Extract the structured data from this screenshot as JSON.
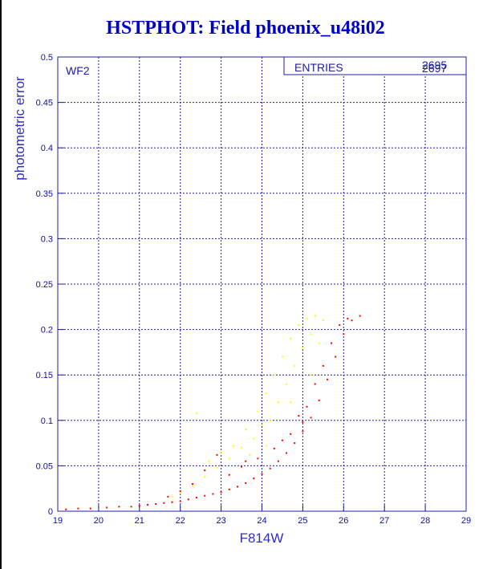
{
  "chart_data": {
    "type": "scatter",
    "title": "HSTPHOT: Field phoenix_u48i02",
    "xlabel": "F814W",
    "ylabel": "photometric error",
    "xlim": [
      19,
      29
    ],
    "ylim": [
      0,
      0.5
    ],
    "x_ticks": [
      "19",
      "20",
      "21",
      "22",
      "23",
      "24",
      "25",
      "26",
      "27",
      "28",
      "29"
    ],
    "y_ticks": [
      "0",
      "0.05",
      "0.1",
      "0.15",
      "0.2",
      "0.25",
      "0.3",
      "0.35",
      "0.4",
      "0.45",
      "0.5"
    ],
    "grid": true,
    "panel_label": "WF2",
    "stats_box": {
      "label": "ENTRIES",
      "values": [
        "2695",
        "2697"
      ]
    },
    "series": [
      {
        "color": "#ff0000",
        "points": [
          [
            19.2,
            0.002
          ],
          [
            19.5,
            0.003
          ],
          [
            19.8,
            0.003
          ],
          [
            20.2,
            0.004
          ],
          [
            20.5,
            0.005
          ],
          [
            20.8,
            0.005
          ],
          [
            21.0,
            0.006
          ],
          [
            21.2,
            0.007
          ],
          [
            21.4,
            0.008
          ],
          [
            21.6,
            0.009
          ],
          [
            21.8,
            0.01
          ],
          [
            22.0,
            0.011
          ],
          [
            22.2,
            0.013
          ],
          [
            22.4,
            0.015
          ],
          [
            22.6,
            0.017
          ],
          [
            22.8,
            0.019
          ],
          [
            23.0,
            0.021
          ],
          [
            23.2,
            0.024
          ],
          [
            23.4,
            0.027
          ],
          [
            23.6,
            0.031
          ],
          [
            23.8,
            0.036
          ],
          [
            24.0,
            0.041
          ],
          [
            24.2,
            0.047
          ],
          [
            24.4,
            0.055
          ],
          [
            24.6,
            0.064
          ],
          [
            24.8,
            0.075
          ],
          [
            25.0,
            0.088
          ],
          [
            25.2,
            0.103
          ],
          [
            25.4,
            0.122
          ],
          [
            25.6,
            0.145
          ],
          [
            25.8,
            0.17
          ],
          [
            26.0,
            0.195
          ],
          [
            26.2,
            0.21
          ],
          [
            26.4,
            0.215
          ],
          [
            22.3,
            0.03
          ],
          [
            22.6,
            0.045
          ],
          [
            22.9,
            0.062
          ],
          [
            23.2,
            0.04
          ],
          [
            23.5,
            0.049
          ],
          [
            23.9,
            0.058
          ],
          [
            24.3,
            0.069
          ],
          [
            24.7,
            0.085
          ],
          [
            25.1,
            0.115
          ],
          [
            25.5,
            0.16
          ],
          [
            25.9,
            0.205
          ],
          [
            26.1,
            0.212
          ],
          [
            24.9,
            0.105
          ],
          [
            25.3,
            0.14
          ],
          [
            25.7,
            0.185
          ],
          [
            22.0,
            0.022
          ],
          [
            21.7,
            0.016
          ],
          [
            23.6,
            0.055
          ],
          [
            24.5,
            0.078
          ],
          [
            25.0,
            0.098
          ]
        ]
      },
      {
        "color": "#ffff00",
        "points": [
          [
            22.4,
            0.108
          ],
          [
            22.7,
            0.055
          ],
          [
            23.0,
            0.065
          ],
          [
            23.3,
            0.072
          ],
          [
            23.6,
            0.09
          ],
          [
            23.9,
            0.11
          ],
          [
            24.1,
            0.13
          ],
          [
            24.3,
            0.15
          ],
          [
            24.5,
            0.17
          ],
          [
            24.7,
            0.19
          ],
          [
            24.9,
            0.205
          ],
          [
            25.1,
            0.212
          ],
          [
            25.3,
            0.215
          ],
          [
            25.5,
            0.21
          ],
          [
            24.2,
            0.1
          ],
          [
            24.4,
            0.12
          ],
          [
            24.6,
            0.14
          ],
          [
            24.8,
            0.16
          ],
          [
            25.0,
            0.18
          ],
          [
            25.2,
            0.195
          ],
          [
            23.8,
            0.08
          ],
          [
            24.0,
            0.095
          ],
          [
            23.5,
            0.07
          ],
          [
            23.2,
            0.058
          ],
          [
            22.9,
            0.048
          ],
          [
            22.6,
            0.038
          ],
          [
            22.3,
            0.028
          ],
          [
            22.0,
            0.02
          ],
          [
            21.8,
            0.016
          ],
          [
            24.7,
            0.12
          ],
          [
            25.2,
            0.15
          ],
          [
            25.4,
            0.185
          ],
          [
            24.1,
            0.072
          ],
          [
            23.7,
            0.062
          ]
        ]
      }
    ]
  }
}
